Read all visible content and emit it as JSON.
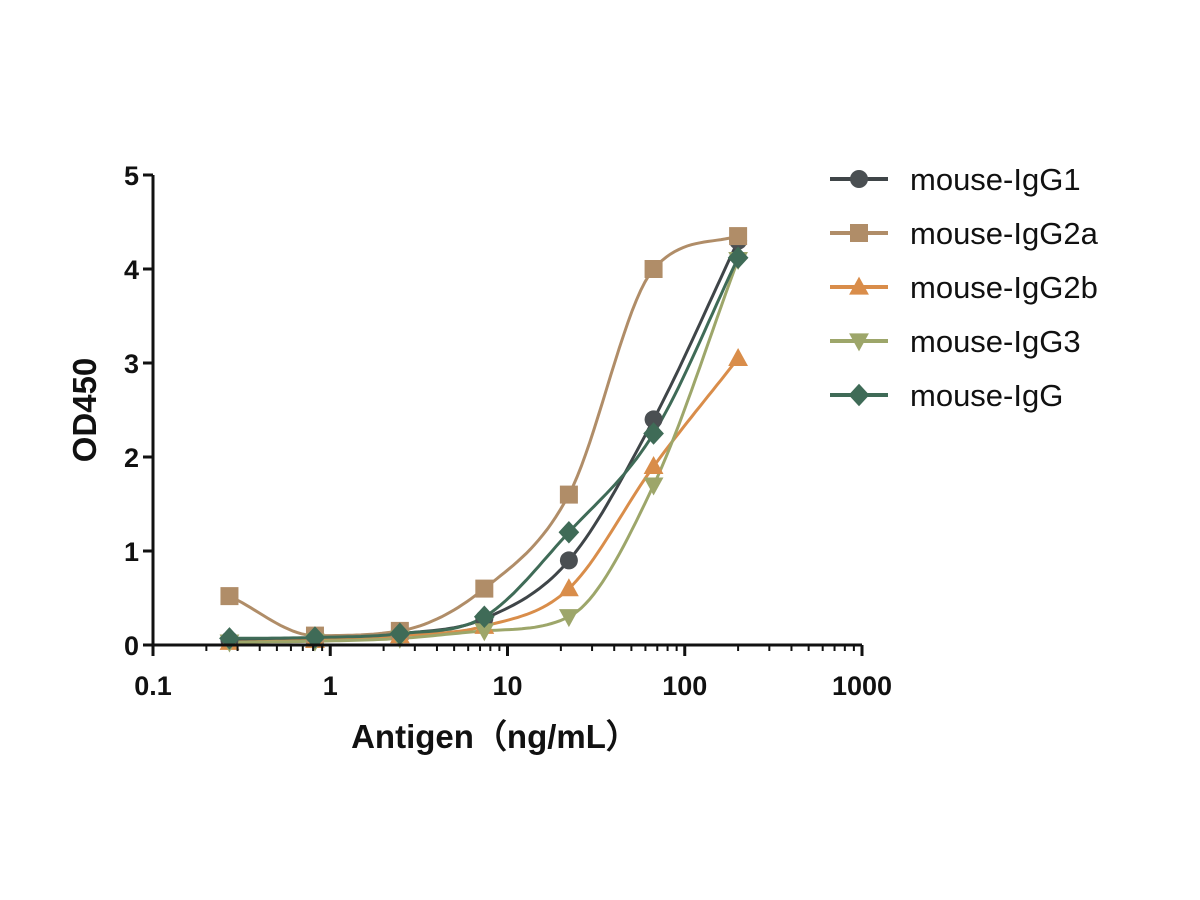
{
  "chart_data": {
    "type": "scatter",
    "title": "",
    "xlabel": "Antigen（ng/mL）",
    "ylabel": "OD450",
    "xscale": "log",
    "xlim": [
      0.1,
      1000
    ],
    "ylim": [
      0,
      5
    ],
    "x_ticks": [
      "0.1",
      "1",
      "10",
      "100",
      "1000"
    ],
    "y_ticks": [
      "0",
      "1",
      "2",
      "3",
      "4",
      "5"
    ],
    "grid": false,
    "legend_position": "top-right",
    "x": [
      0.27,
      0.82,
      2.47,
      7.4,
      22.2,
      66.7,
      200
    ],
    "series": [
      {
        "name": "mouse-IgG1",
        "marker": "circle",
        "color": "#4a4f52",
        "values": [
          0.05,
          0.07,
          0.12,
          0.28,
          0.9,
          2.4,
          4.3
        ],
        "fit_color": "#3f4548"
      },
      {
        "name": "mouse-IgG2a",
        "marker": "square",
        "color": "#b08d68",
        "values": [
          0.52,
          0.1,
          0.15,
          0.6,
          1.6,
          4.0,
          4.35
        ],
        "fit_color": "#b08d68"
      },
      {
        "name": "mouse-IgG2b",
        "marker": "triangle-up",
        "color": "#d98d4a",
        "values": [
          0.03,
          0.05,
          0.1,
          0.2,
          0.6,
          1.9,
          3.05
        ],
        "fit_color": "#d98d4a"
      },
      {
        "name": "mouse-IgG3",
        "marker": "triangle-down",
        "color": "#9da66a",
        "values": [
          0.03,
          0.04,
          0.07,
          0.15,
          0.3,
          1.7,
          4.1
        ],
        "fit_color": "#9da66a"
      },
      {
        "name": "mouse-IgG",
        "marker": "diamond",
        "color": "#3f6b57",
        "values": [
          0.07,
          0.08,
          0.12,
          0.3,
          1.2,
          2.25,
          4.12
        ],
        "fit_color": "#3f6b57"
      }
    ]
  }
}
